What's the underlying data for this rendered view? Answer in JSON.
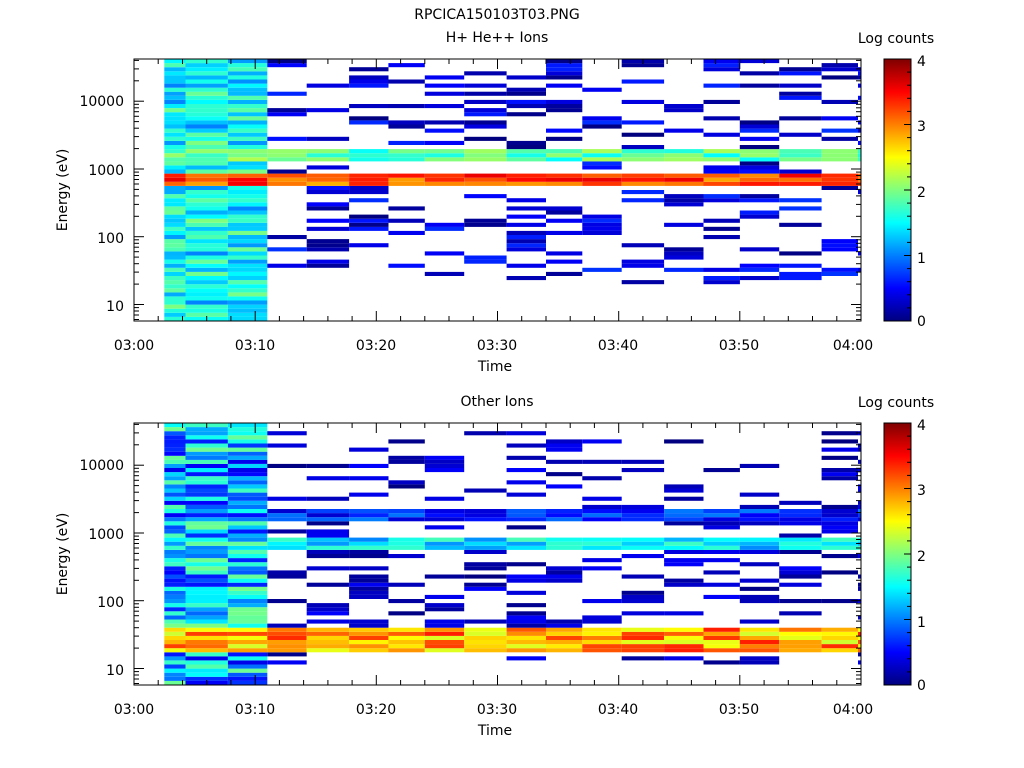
{
  "figure_title": "RPCICA150103T03.PNG",
  "colorbar_colors": [
    "#00007f",
    "#0000ff",
    "#007fff",
    "#00ffff",
    "#7fff7f",
    "#ffff00",
    "#ff7f00",
    "#ff0000",
    "#7f0000"
  ],
  "chart_data": [
    {
      "type": "heatmap",
      "title": "H+ He++ Ions",
      "xlabel": "Time",
      "ylabel": "Energy (eV)",
      "x_ticks": [
        "03:00",
        "03:10",
        "03:20",
        "03:30",
        "03:40",
        "03:50",
        "04:00"
      ],
      "xlim": [
        "03:00",
        "04:00"
      ],
      "y_scale": "log",
      "ylim": [
        5.7,
        42000
      ],
      "y_ticks": [
        "10",
        "100",
        "1000",
        "10000"
      ],
      "colorbar": {
        "label": "Log counts",
        "range": [
          0,
          4
        ],
        "ticks": [
          "0",
          "1",
          "2",
          "3",
          "4"
        ]
      },
      "time_bins": [
        "03:02:30",
        "03:06:00",
        "03:09:30",
        "03:12:30",
        "03:16:00",
        "03:19:30",
        "03:22:30",
        "03:25:30",
        "03:29:00",
        "03:32:30",
        "03:35:30",
        "03:38:30",
        "03:42:00",
        "03:45:30",
        "03:48:30",
        "03:51:30",
        "03:55:00",
        "03:58:30",
        "04:01:00"
      ],
      "key_features": [
        {
          "time": "03:02-03:09",
          "energy_range": [
            6,
            42000
          ],
          "log_counts_range": [
            1.0,
            2.0
          ],
          "note": "dense background in all energy channels"
        },
        {
          "time": "03:02-04:01",
          "energy_range": [
            580,
            900
          ],
          "log_counts_range": [
            2.8,
            3.6
          ],
          "note": "intense band near 700-800 eV"
        },
        {
          "time": "03:02-04:01",
          "energy_range": [
            1300,
            2000
          ],
          "log_counts_range": [
            1.5,
            2.2
          ],
          "note": "secondary band near 1500-1800 eV"
        },
        {
          "time": "03:09-04:01",
          "energy_range": [
            20,
            42000
          ],
          "log_counts_range": [
            0,
            0.7
          ],
          "note": "sparse single counts"
        }
      ]
    },
    {
      "type": "heatmap",
      "title": "Other Ions",
      "xlabel": "Time",
      "ylabel": "Energy (eV)",
      "x_ticks": [
        "03:00",
        "03:10",
        "03:20",
        "03:30",
        "03:40",
        "03:50",
        "04:00"
      ],
      "xlim": [
        "03:00",
        "04:00"
      ],
      "y_scale": "log",
      "ylim": [
        5.7,
        42000
      ],
      "y_ticks": [
        "10",
        "100",
        "1000",
        "10000"
      ],
      "colorbar": {
        "label": "Log counts",
        "range": [
          0,
          4
        ],
        "ticks": [
          "0",
          "1",
          "2",
          "3",
          "4"
        ]
      },
      "time_bins": [
        "03:02:30",
        "03:06:00",
        "03:09:30",
        "03:12:30",
        "03:16:00",
        "03:19:30",
        "03:22:30",
        "03:25:30",
        "03:29:00",
        "03:32:30",
        "03:35:30",
        "03:38:30",
        "03:42:00",
        "03:45:30",
        "03:48:30",
        "03:51:30",
        "03:55:00",
        "03:58:30",
        "04:01:00"
      ],
      "key_features": [
        {
          "time": "03:02-03:09",
          "energy_range": [
            6,
            42000
          ],
          "log_counts_range": [
            0.4,
            2.0
          ],
          "note": "dense background in all energy channels"
        },
        {
          "time": "03:02-04:01",
          "energy_range": [
            17,
            38
          ],
          "log_counts_range": [
            2.3,
            3.4
          ],
          "note": "intense low-energy band near 20-35 eV"
        },
        {
          "time": "03:02-04:01",
          "energy_range": [
            600,
            850
          ],
          "log_counts_range": [
            1.0,
            1.8
          ],
          "note": "band near 700 eV"
        },
        {
          "time": "03:09-04:01",
          "energy_range": [
            1500,
            2200
          ],
          "log_counts_range": [
            0.3,
            1.0
          ],
          "note": "band near 1800 eV"
        },
        {
          "time": "03:09-04:01",
          "energy_range": [
            11,
            30000
          ],
          "log_counts_range": [
            0,
            0.5
          ],
          "note": "sparse single counts"
        }
      ]
    }
  ]
}
